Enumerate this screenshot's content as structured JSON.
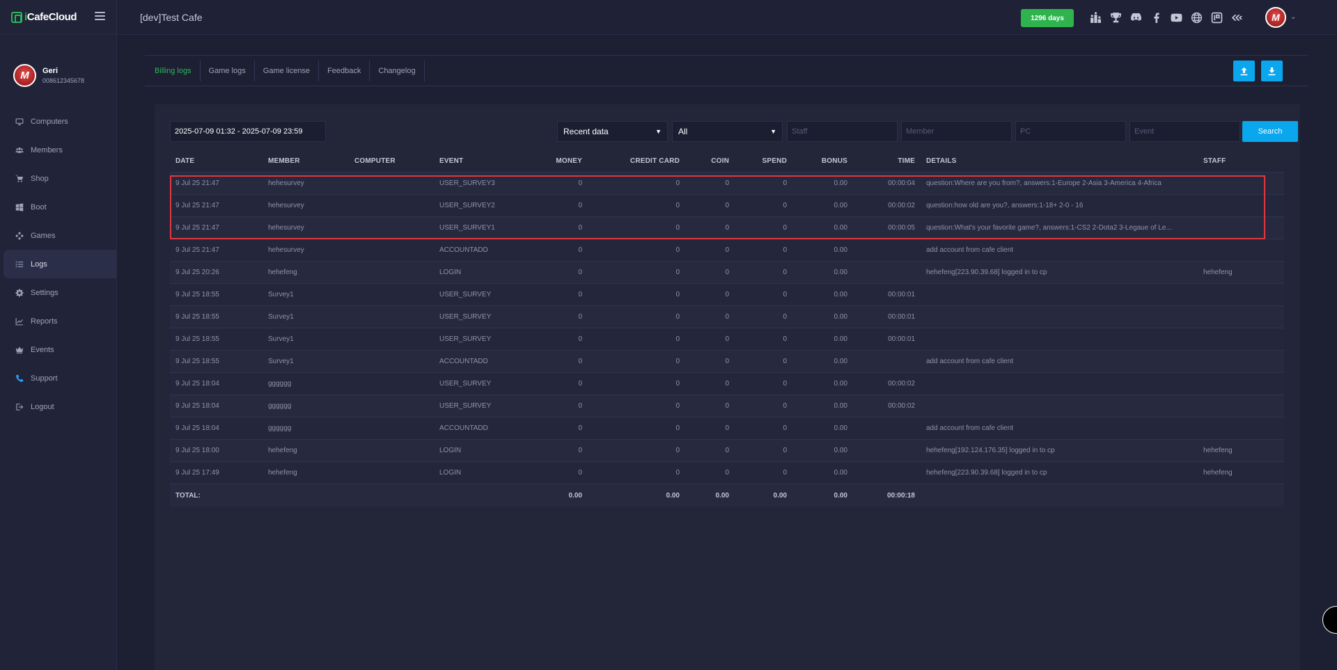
{
  "brand": {
    "name_accent": "i",
    "name_rest": "CafeCloud"
  },
  "user": {
    "name": "Geri",
    "phone": "008612345678",
    "avatar_letter": "M"
  },
  "nav": [
    {
      "label": "Computers",
      "icon": "monitor-icon"
    },
    {
      "label": "Members",
      "icon": "users-icon"
    },
    {
      "label": "Shop",
      "icon": "cart-icon"
    },
    {
      "label": "Boot",
      "icon": "windows-icon"
    },
    {
      "label": "Games",
      "icon": "gamepad-icon"
    },
    {
      "label": "Logs",
      "icon": "list-icon",
      "active": true
    },
    {
      "label": "Settings",
      "icon": "gear-icon"
    },
    {
      "label": "Reports",
      "icon": "chart-line-icon"
    },
    {
      "label": "Events",
      "icon": "crown-icon"
    },
    {
      "label": "Support",
      "icon": "phone-icon"
    },
    {
      "label": "Logout",
      "icon": "logout-icon"
    }
  ],
  "header": {
    "cafe_title": "[dev]Test Cafe",
    "days_badge": "1296 days",
    "icons": [
      "ranking-icon",
      "trophy-icon",
      "discord-icon",
      "facebook-icon",
      "youtube-icon",
      "globe-icon",
      "icafe-icon",
      "brand-icon"
    ]
  },
  "tabs": [
    {
      "label": "Billing logs",
      "active": true
    },
    {
      "label": "Game logs"
    },
    {
      "label": "Game license"
    },
    {
      "label": "Feedback"
    },
    {
      "label": "Changelog"
    }
  ],
  "filters": {
    "date_range": "2025-07-09 01:32 - 2025-07-09 23:59",
    "data_select": "Recent data",
    "type_select": "All",
    "staff_placeholder": "Staff",
    "member_placeholder": "Member",
    "pc_placeholder": "PC",
    "event_placeholder": "Event",
    "search_label": "Search"
  },
  "table": {
    "columns": [
      "DATE",
      "MEMBER",
      "COMPUTER",
      "EVENT",
      "MONEY",
      "CREDIT CARD",
      "COIN",
      "SPEND",
      "BONUS",
      "TIME",
      "DETAILS",
      "STAFF"
    ],
    "rows": [
      [
        "9 Jul 25 21:47",
        "hehesurvey",
        "",
        "USER_SURVEY3",
        "0",
        "0",
        "0",
        "0",
        "0.00",
        "00:00:04",
        "question:Where are you from?, answers:1-Europe 2-Asia 3-America 4-Africa",
        ""
      ],
      [
        "9 Jul 25 21:47",
        "hehesurvey",
        "",
        "USER_SURVEY2",
        "0",
        "0",
        "0",
        "0",
        "0.00",
        "00:00:02",
        "question:how old are you?, answers:1-18+ 2-0 - 16",
        ""
      ],
      [
        "9 Jul 25 21:47",
        "hehesurvey",
        "",
        "USER_SURVEY1",
        "0",
        "0",
        "0",
        "0",
        "0.00",
        "00:00:05",
        "question:What's your favorite game?, answers:1-CS2 2-Dota2 3-Legaue of Le...",
        ""
      ],
      [
        "9 Jul 25 21:47",
        "hehesurvey",
        "",
        "ACCOUNTADD",
        "0",
        "0",
        "0",
        "0",
        "0.00",
        "",
        "add account from cafe client",
        ""
      ],
      [
        "9 Jul 25 20:26",
        "hehefeng",
        "",
        "LOGIN",
        "0",
        "0",
        "0",
        "0",
        "0.00",
        "",
        "hehefeng[223.90.39.68] logged in to cp",
        "hehefeng"
      ],
      [
        "9 Jul 25 18:55",
        "Survey1",
        "",
        "USER_SURVEY",
        "0",
        "0",
        "0",
        "0",
        "0.00",
        "00:00:01",
        "",
        ""
      ],
      [
        "9 Jul 25 18:55",
        "Survey1",
        "",
        "USER_SURVEY",
        "0",
        "0",
        "0",
        "0",
        "0.00",
        "00:00:01",
        "",
        ""
      ],
      [
        "9 Jul 25 18:55",
        "Survey1",
        "",
        "USER_SURVEY",
        "0",
        "0",
        "0",
        "0",
        "0.00",
        "00:00:01",
        "",
        ""
      ],
      [
        "9 Jul 25 18:55",
        "Survey1",
        "",
        "ACCOUNTADD",
        "0",
        "0",
        "0",
        "0",
        "0.00",
        "",
        "add account from cafe client",
        ""
      ],
      [
        "9 Jul 25 18:04",
        "gggggg",
        "",
        "USER_SURVEY",
        "0",
        "0",
        "0",
        "0",
        "0.00",
        "00:00:02",
        "",
        ""
      ],
      [
        "9 Jul 25 18:04",
        "gggggg",
        "",
        "USER_SURVEY",
        "0",
        "0",
        "0",
        "0",
        "0.00",
        "00:00:02",
        "",
        ""
      ],
      [
        "9 Jul 25 18:04",
        "gggggg",
        "",
        "ACCOUNTADD",
        "0",
        "0",
        "0",
        "0",
        "0.00",
        "",
        "add account from cafe client",
        ""
      ],
      [
        "9 Jul 25 18:00",
        "hehefeng",
        "",
        "LOGIN",
        "0",
        "0",
        "0",
        "0",
        "0.00",
        "",
        "hehefeng[192.124.176.35] logged in to cp",
        "hehefeng"
      ],
      [
        "9 Jul 25 17:49",
        "hehefeng",
        "",
        "LOGIN",
        "0",
        "0",
        "0",
        "0",
        "0.00",
        "",
        "hehefeng[223.90.39.68] logged in to cp",
        "hehefeng"
      ]
    ],
    "totals": {
      "label": "TOTAL:",
      "money": "0.00",
      "credit_card": "0.00",
      "coin": "0.00",
      "spend": "0.00",
      "bonus": "0.00",
      "time": "00:00:18"
    }
  },
  "colors": {
    "accent_green": "#2fb65a",
    "accent_blue": "#0aa6ee",
    "highlight_red": "#e0383d"
  }
}
